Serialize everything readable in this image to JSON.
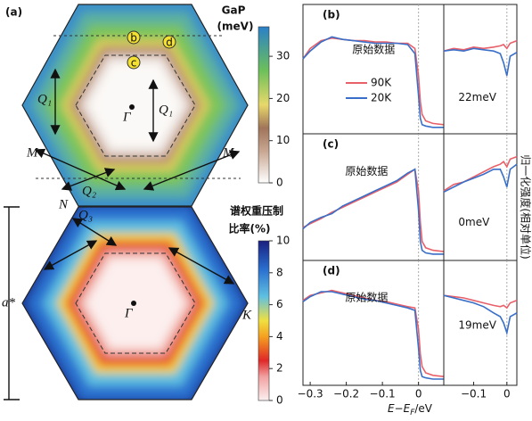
{
  "panel_a": {
    "label": "(a)",
    "colorbar_gap": {
      "title": "GaP",
      "unit": "(meV)",
      "lim": [
        0,
        37
      ],
      "ticks": [
        0,
        10,
        20,
        30
      ]
    },
    "colorbar_ratio": {
      "title": "谱权重压制",
      "unit": "比率(%)",
      "lim": [
        0,
        10
      ],
      "ticks": [
        0,
        2,
        4,
        6,
        8,
        10
      ]
    },
    "labels": {
      "gamma_top": "Γ",
      "gamma_bottom": "Γ",
      "q1_left": "Q₁",
      "q1_right": "Q₁",
      "q2": "Q₂",
      "q3": "Q₃",
      "m_left": "M",
      "m_right": "M",
      "n": "N",
      "k": "K",
      "a_star": "a*"
    },
    "points": [
      "b",
      "c",
      "d"
    ]
  },
  "y_label": "归一化强度(相对单位)",
  "x_label": {
    "main": "E−E",
    "sub": "F",
    "unit": "/eV"
  },
  "chart_data": [
    {
      "type": "line",
      "label": "(b)",
      "annotation": "原始数据",
      "legend": true,
      "vline": 0,
      "x": [
        -0.32,
        -0.3,
        -0.27,
        -0.24,
        -0.21,
        -0.18,
        -0.15,
        -0.12,
        -0.09,
        -0.06,
        -0.03,
        -0.01,
        0,
        0.005,
        0.01,
        0.02,
        0.04,
        0.07
      ],
      "xlim": [
        -0.32,
        0.07
      ],
      "ylim": [
        0,
        1
      ],
      "series": [
        {
          "name": "90K",
          "color": "#e8606a",
          "values": [
            0.58,
            0.66,
            0.72,
            0.74,
            0.73,
            0.72,
            0.72,
            0.71,
            0.71,
            0.7,
            0.7,
            0.66,
            0.45,
            0.25,
            0.15,
            0.1,
            0.08,
            0.07
          ]
        },
        {
          "name": "20K",
          "color": "#3a6fc8",
          "values": [
            0.58,
            0.64,
            0.71,
            0.75,
            0.73,
            0.72,
            0.71,
            0.7,
            0.7,
            0.7,
            0.69,
            0.62,
            0.3,
            0.12,
            0.07,
            0.06,
            0.05,
            0.05
          ]
        }
      ]
    },
    {
      "type": "line",
      "annotation": "22meV",
      "vline": 0,
      "x": [
        -0.19,
        -0.16,
        -0.13,
        -0.1,
        -0.07,
        -0.04,
        -0.02,
        -0.01,
        0,
        0.01,
        0.03
      ],
      "xlim": [
        -0.19,
        0.03
      ],
      "ylim": [
        0,
        1
      ],
      "series": [
        {
          "name": "90K",
          "color": "#e8606a",
          "values": [
            0.64,
            0.66,
            0.65,
            0.67,
            0.66,
            0.67,
            0.68,
            0.69,
            0.66,
            0.7,
            0.72
          ]
        },
        {
          "name": "20K",
          "color": "#3a6fc8",
          "values": [
            0.64,
            0.65,
            0.64,
            0.66,
            0.65,
            0.64,
            0.62,
            0.55,
            0.45,
            0.6,
            0.63
          ]
        }
      ]
    },
    {
      "type": "line",
      "label": "(c)",
      "annotation": "原始数据",
      "vline": 0,
      "x": [
        -0.32,
        -0.3,
        -0.27,
        -0.24,
        -0.21,
        -0.18,
        -0.15,
        -0.12,
        -0.09,
        -0.06,
        -0.03,
        -0.01,
        0,
        0.005,
        0.01,
        0.02,
        0.04,
        0.07
      ],
      "xlim": [
        -0.32,
        0.07
      ],
      "ylim": [
        0,
        1
      ],
      "series": [
        {
          "name": "90K",
          "color": "#e8606a",
          "values": [
            0.26,
            0.29,
            0.33,
            0.38,
            0.42,
            0.46,
            0.5,
            0.54,
            0.58,
            0.62,
            0.68,
            0.72,
            0.55,
            0.3,
            0.15,
            0.1,
            0.08,
            0.07
          ]
        },
        {
          "name": "20K",
          "color": "#3a6fc8",
          "values": [
            0.25,
            0.3,
            0.34,
            0.37,
            0.43,
            0.47,
            0.51,
            0.55,
            0.59,
            0.63,
            0.69,
            0.72,
            0.4,
            0.15,
            0.08,
            0.06,
            0.05,
            0.05
          ]
        }
      ]
    },
    {
      "type": "line",
      "annotation": "0meV",
      "vline": 0,
      "x": [
        -0.19,
        -0.16,
        -0.13,
        -0.1,
        -0.07,
        -0.04,
        -0.02,
        -0.01,
        0,
        0.01,
        0.03
      ],
      "xlim": [
        -0.19,
        0.03
      ],
      "ylim": [
        0,
        1
      ],
      "series": [
        {
          "name": "90K",
          "color": "#e8606a",
          "values": [
            0.55,
            0.6,
            0.62,
            0.66,
            0.7,
            0.74,
            0.76,
            0.78,
            0.74,
            0.8,
            0.82
          ]
        },
        {
          "name": "20K",
          "color": "#3a6fc8",
          "values": [
            0.54,
            0.58,
            0.62,
            0.65,
            0.68,
            0.72,
            0.72,
            0.66,
            0.58,
            0.72,
            0.76
          ]
        }
      ]
    },
    {
      "type": "line",
      "label": "(d)",
      "annotation": "原始数据",
      "vline": 0,
      "x": [
        -0.32,
        -0.3,
        -0.27,
        -0.24,
        -0.21,
        -0.18,
        -0.15,
        -0.12,
        -0.09,
        -0.06,
        -0.03,
        -0.01,
        0,
        0.005,
        0.01,
        0.02,
        0.04,
        0.07
      ],
      "xlim": [
        -0.32,
        0.07
      ],
      "ylim": [
        0,
        1
      ],
      "xticks": [
        {
          "value": -0.3,
          "label": "−0.3"
        },
        {
          "value": -0.2,
          "label": "−0.2"
        },
        {
          "value": -0.1,
          "label": "−0.1"
        },
        0
      ],
      "series": [
        {
          "name": "90K",
          "color": "#e8606a",
          "values": [
            0.68,
            0.72,
            0.74,
            0.76,
            0.74,
            0.72,
            0.7,
            0.68,
            0.67,
            0.65,
            0.63,
            0.62,
            0.45,
            0.25,
            0.15,
            0.1,
            0.08,
            0.07
          ]
        },
        {
          "name": "20K",
          "color": "#3a6fc8",
          "values": [
            0.67,
            0.71,
            0.75,
            0.75,
            0.73,
            0.71,
            0.69,
            0.68,
            0.66,
            0.64,
            0.62,
            0.6,
            0.3,
            0.12,
            0.07,
            0.06,
            0.05,
            0.05
          ]
        }
      ]
    },
    {
      "type": "line",
      "annotation": "19meV",
      "vline": 0,
      "x": [
        -0.19,
        -0.16,
        -0.13,
        -0.1,
        -0.07,
        -0.04,
        -0.02,
        -0.01,
        0,
        0.01,
        0.03
      ],
      "xlim": [
        -0.19,
        0.03
      ],
      "ylim": [
        0,
        1
      ],
      "xticks": [
        {
          "value": -0.1,
          "label": "−0.1"
        },
        0
      ],
      "series": [
        {
          "name": "90K",
          "color": "#e8606a",
          "values": [
            0.72,
            0.71,
            0.7,
            0.68,
            0.66,
            0.64,
            0.63,
            0.64,
            0.62,
            0.66,
            0.68
          ]
        },
        {
          "name": "20K",
          "color": "#3a6fc8",
          "values": [
            0.72,
            0.7,
            0.68,
            0.66,
            0.63,
            0.58,
            0.55,
            0.5,
            0.42,
            0.55,
            0.58
          ]
        }
      ]
    }
  ]
}
